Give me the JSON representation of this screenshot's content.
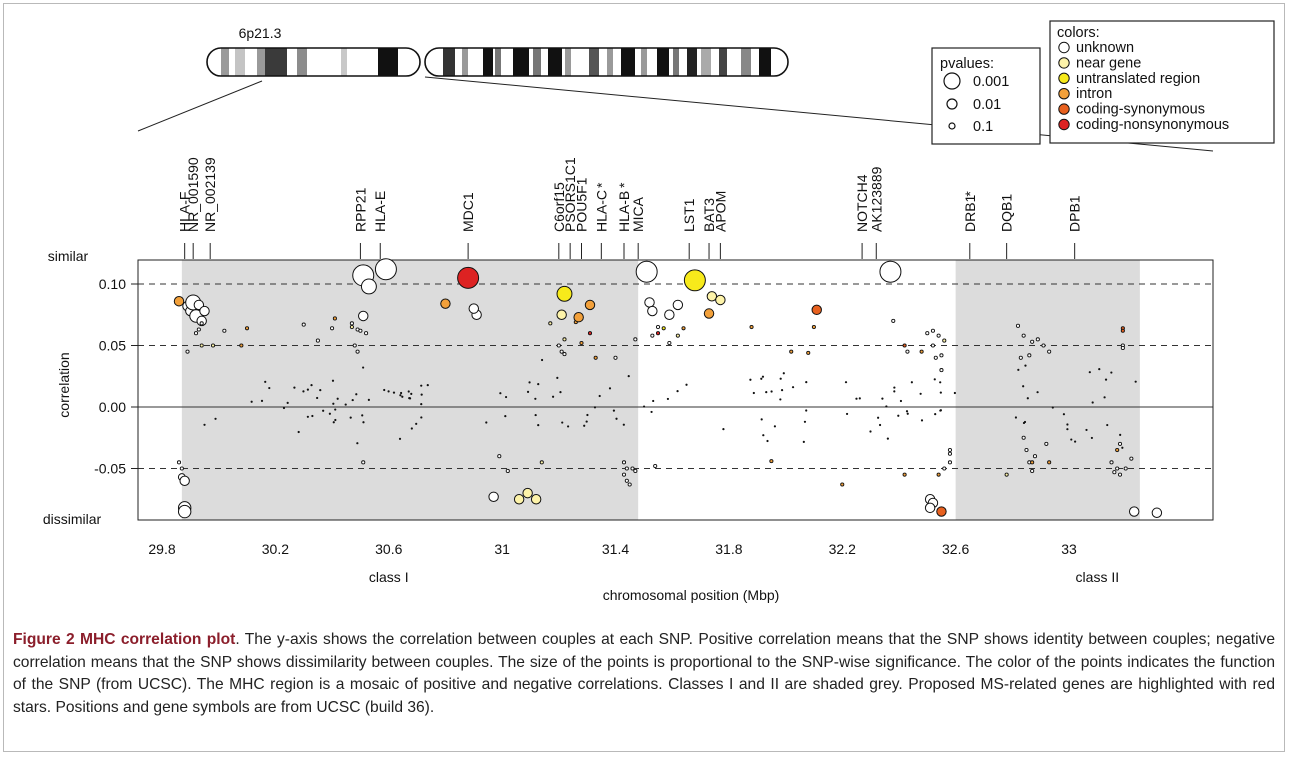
{
  "chart_data": {
    "type": "scatter",
    "title": "",
    "xlabel": "chromosomal position (Mbp)",
    "ylabel": "correlation",
    "xlim": [
      29.65,
      33.5
    ],
    "ylim": [
      -0.092,
      0.12
    ],
    "x_ticks": [
      29.8,
      30.2,
      30.6,
      31,
      31.4,
      31.8,
      32.2,
      32.6,
      33
    ],
    "x_tick_labels": [
      "29.8",
      "30.2",
      "30.6",
      "31",
      "31.4",
      "31.8",
      "32.2",
      "32.6",
      "33"
    ],
    "y_ticks": [
      0.1,
      0.05,
      0.0,
      -0.05
    ],
    "y_tick_labels": [
      "0.10",
      "0.05",
      "0.00",
      "-0.05"
    ],
    "y_top_label": "similar",
    "y_bottom_label": "dissimilar",
    "dashed_lines_y": [
      0.1,
      0.05,
      -0.05
    ],
    "solid_line_y": 0.0,
    "grid": false,
    "shaded_regions": [
      {
        "label": "class I",
        "x": [
          29.87,
          31.48
        ],
        "label_x": 30.6
      },
      {
        "label": "class II",
        "x": [
          32.6,
          33.25
        ],
        "label_x": 33.1
      }
    ],
    "chromosome": {
      "band_label": "6p21.3",
      "zoom_from": 30.6,
      "zoom_to": 33.5
    },
    "genes": [
      {
        "name": "HLA-F",
        "x": 29.88,
        "star": false
      },
      {
        "name": "NR_001590",
        "x": 29.91,
        "star": false
      },
      {
        "name": "NR_002139",
        "x": 29.97,
        "star": false
      },
      {
        "name": "RPP21",
        "x": 30.5,
        "star": false
      },
      {
        "name": "HLA-E",
        "x": 30.57,
        "star": false
      },
      {
        "name": "MDC1",
        "x": 30.88,
        "star": false
      },
      {
        "name": "C6orf15",
        "x": 31.2,
        "star": false
      },
      {
        "name": "PSORS1C1",
        "x": 31.24,
        "star": false
      },
      {
        "name": "POU5F1",
        "x": 31.28,
        "star": false
      },
      {
        "name": "HLA-C",
        "x": 31.35,
        "star": true
      },
      {
        "name": "HLA-B",
        "x": 31.43,
        "star": true
      },
      {
        "name": "MICA",
        "x": 31.48,
        "star": false
      },
      {
        "name": "LST1",
        "x": 31.66,
        "star": false
      },
      {
        "name": "BAT3",
        "x": 31.73,
        "star": false
      },
      {
        "name": "APOM",
        "x": 31.77,
        "star": false
      },
      {
        "name": "NOTCH4",
        "x": 32.27,
        "star": false
      },
      {
        "name": "AK123889",
        "x": 32.32,
        "star": false
      },
      {
        "name": "DRB1",
        "x": 32.65,
        "star": true
      },
      {
        "name": "DQB1",
        "x": 32.78,
        "star": false
      },
      {
        "name": "DPB1",
        "x": 33.02,
        "star": false
      }
    ],
    "pvalue_legend": {
      "title": "pvalues:",
      "entries": [
        {
          "label": "0.001",
          "size": "large"
        },
        {
          "label": "0.01",
          "size": "medium"
        },
        {
          "label": "0.1",
          "size": "small"
        }
      ]
    },
    "color_legend": {
      "title": "colors:",
      "entries": [
        {
          "label": "unknown",
          "color": "#ffffff"
        },
        {
          "label": "near gene",
          "color": "#fdf3a9"
        },
        {
          "label": "untranslated region",
          "color": "#f7ea1b"
        },
        {
          "label": "intron",
          "color": "#f2a03a"
        },
        {
          "label": "coding-synonymous",
          "color": "#e8611f"
        },
        {
          "label": "coding-nonsynonymous",
          "color": "#dd2222"
        }
      ]
    },
    "series": [
      {
        "category": "unknown",
        "color": "#ffffff",
        "points": [
          [
            29.86,
            -0.045,
            0.05
          ],
          [
            29.87,
            -0.05,
            0.05
          ],
          [
            29.87,
            -0.057,
            0.02
          ],
          [
            29.88,
            -0.06,
            0.01
          ],
          [
            29.88,
            -0.082,
            0.005
          ],
          [
            29.88,
            -0.085,
            0.005
          ],
          [
            29.89,
            0.082,
            0.01
          ],
          [
            29.9,
            0.078,
            0.01
          ],
          [
            29.91,
            0.084,
            0.005
          ],
          [
            29.91,
            0.085,
            0.003
          ],
          [
            29.92,
            0.074,
            0.005
          ],
          [
            29.93,
            0.083,
            0.01
          ],
          [
            29.94,
            0.07,
            0.01
          ],
          [
            29.93,
            0.063,
            0.05
          ],
          [
            29.94,
            0.068,
            0.05
          ],
          [
            29.92,
            0.06,
            0.05
          ],
          [
            29.89,
            0.045,
            0.05
          ],
          [
            29.95,
            0.078,
            0.01
          ],
          [
            30.02,
            0.062,
            0.05
          ],
          [
            30.3,
            0.067,
            0.05
          ],
          [
            30.35,
            0.054,
            0.05
          ],
          [
            30.4,
            0.064,
            0.05
          ],
          [
            30.47,
            0.068,
            0.05
          ],
          [
            30.49,
            0.063,
            0.05
          ],
          [
            30.5,
            0.062,
            0.05
          ],
          [
            30.51,
            0.074,
            0.01
          ],
          [
            30.51,
            0.107,
            0.001
          ],
          [
            30.53,
            0.098,
            0.003
          ],
          [
            30.59,
            0.112,
            0.001
          ],
          [
            30.48,
            0.05,
            0.05
          ],
          [
            30.49,
            0.045,
            0.05
          ],
          [
            30.52,
            0.06,
            0.05
          ],
          [
            30.51,
            -0.045,
            0.05
          ],
          [
            30.91,
            0.075,
            0.01
          ],
          [
            30.9,
            0.08,
            0.01
          ],
          [
            30.97,
            -0.073,
            0.01
          ],
          [
            31.02,
            -0.052,
            0.05
          ],
          [
            30.99,
            -0.04,
            0.05
          ],
          [
            31.2,
            0.05,
            0.05
          ],
          [
            31.21,
            0.045,
            0.05
          ],
          [
            31.22,
            0.043,
            0.05
          ],
          [
            31.4,
            0.04,
            0.05
          ],
          [
            31.43,
            -0.045,
            0.05
          ],
          [
            31.44,
            -0.05,
            0.05
          ],
          [
            31.43,
            -0.055,
            0.05
          ],
          [
            31.44,
            -0.06,
            0.05
          ],
          [
            31.45,
            -0.063,
            0.05
          ],
          [
            31.46,
            -0.05,
            0.05
          ],
          [
            31.47,
            -0.052,
            0.05
          ],
          [
            31.47,
            0.055,
            0.05
          ],
          [
            31.51,
            0.11,
            0.001
          ],
          [
            31.52,
            0.085,
            0.01
          ],
          [
            31.53,
            0.078,
            0.01
          ],
          [
            31.55,
            0.065,
            0.05
          ],
          [
            31.59,
            0.075,
            0.01
          ],
          [
            31.62,
            0.083,
            0.01
          ],
          [
            31.59,
            0.052,
            0.05
          ],
          [
            31.53,
            0.058,
            0.05
          ],
          [
            31.54,
            -0.048,
            0.05
          ],
          [
            32.37,
            0.11,
            0.001
          ],
          [
            32.38,
            0.07,
            0.05
          ],
          [
            32.43,
            0.045,
            0.05
          ],
          [
            32.5,
            0.06,
            0.05
          ],
          [
            32.52,
            0.062,
            0.05
          ],
          [
            32.52,
            0.05,
            0.05
          ],
          [
            32.54,
            0.058,
            0.05
          ],
          [
            32.53,
            0.04,
            0.05
          ],
          [
            32.55,
            0.042,
            0.05
          ],
          [
            32.55,
            0.03,
            0.05
          ],
          [
            32.51,
            -0.075,
            0.01
          ],
          [
            32.52,
            -0.078,
            0.01
          ],
          [
            32.51,
            -0.082,
            0.01
          ],
          [
            32.58,
            -0.035,
            0.05
          ],
          [
            32.58,
            -0.038,
            0.05
          ],
          [
            32.58,
            -0.045,
            0.05
          ],
          [
            32.56,
            -0.05,
            0.05
          ],
          [
            32.82,
            0.066,
            0.05
          ],
          [
            32.84,
            0.058,
            0.05
          ],
          [
            32.87,
            0.053,
            0.05
          ],
          [
            32.89,
            0.055,
            0.05
          ],
          [
            32.91,
            0.05,
            0.05
          ],
          [
            32.93,
            0.045,
            0.05
          ],
          [
            32.83,
            0.04,
            0.05
          ],
          [
            32.86,
            0.042,
            0.05
          ],
          [
            32.84,
            -0.025,
            0.05
          ],
          [
            32.85,
            -0.035,
            0.05
          ],
          [
            32.86,
            -0.045,
            0.05
          ],
          [
            32.88,
            -0.04,
            0.05
          ],
          [
            32.92,
            -0.03,
            0.05
          ],
          [
            32.87,
            -0.052,
            0.05
          ],
          [
            33.15,
            -0.045,
            0.05
          ],
          [
            33.17,
            -0.05,
            0.05
          ],
          [
            33.16,
            -0.053,
            0.05
          ],
          [
            33.18,
            -0.055,
            0.05
          ],
          [
            33.2,
            -0.05,
            0.05
          ],
          [
            33.19,
            0.05,
            0.05
          ],
          [
            33.22,
            -0.042,
            0.05
          ],
          [
            33.23,
            -0.085,
            0.01
          ],
          [
            33.31,
            -0.086,
            0.01
          ],
          [
            33.19,
            0.048,
            0.05
          ],
          [
            33.18,
            -0.03,
            0.05
          ]
        ]
      },
      {
        "category": "near gene",
        "color": "#fdf3a9",
        "points": [
          [
            31.06,
            -0.075,
            0.01
          ],
          [
            31.09,
            -0.07,
            0.01
          ],
          [
            31.12,
            -0.075,
            0.01
          ],
          [
            31.21,
            0.075,
            0.01
          ],
          [
            31.17,
            0.068,
            0.05
          ],
          [
            31.22,
            0.055,
            0.05
          ],
          [
            31.74,
            0.09,
            0.01
          ],
          [
            31.77,
            0.087,
            0.01
          ],
          [
            31.62,
            0.058,
            0.05
          ],
          [
            32.56,
            0.054,
            0.05
          ],
          [
            32.78,
            -0.055,
            0.05
          ],
          [
            31.14,
            -0.045,
            0.05
          ],
          [
            29.94,
            0.05,
            0.05
          ],
          [
            29.98,
            0.05,
            0.05
          ],
          [
            30.47,
            0.065,
            0.05
          ]
        ]
      },
      {
        "category": "untranslated region",
        "color": "#f7ea1b",
        "points": [
          [
            31.22,
            0.092,
            0.003
          ],
          [
            31.68,
            0.103,
            0.001
          ],
          [
            31.57,
            0.064,
            0.05
          ]
        ]
      },
      {
        "category": "intron",
        "color": "#f2a03a",
        "points": [
          [
            29.86,
            0.086,
            0.01
          ],
          [
            30.1,
            0.064,
            0.05
          ],
          [
            30.08,
            0.05,
            0.05
          ],
          [
            30.41,
            0.072,
            0.05
          ],
          [
            30.8,
            0.084,
            0.01
          ],
          [
            31.26,
            0.069,
            0.05
          ],
          [
            31.27,
            0.073,
            0.01
          ],
          [
            31.31,
            0.083,
            0.01
          ],
          [
            31.33,
            0.04,
            0.05
          ],
          [
            31.28,
            0.052,
            0.05
          ],
          [
            31.64,
            0.064,
            0.05
          ],
          [
            31.73,
            0.076,
            0.01
          ],
          [
            31.88,
            0.065,
            0.05
          ],
          [
            32.1,
            0.065,
            0.05
          ],
          [
            32.08,
            0.044,
            0.05
          ],
          [
            32.02,
            0.045,
            0.05
          ],
          [
            32.48,
            0.045,
            0.05
          ],
          [
            32.54,
            -0.055,
            0.05
          ],
          [
            32.42,
            -0.055,
            0.05
          ],
          [
            31.95,
            -0.044,
            0.05
          ],
          [
            32.2,
            -0.063,
            0.05
          ],
          [
            33.17,
            -0.035,
            0.05
          ],
          [
            32.93,
            -0.045,
            0.05
          ],
          [
            32.87,
            -0.045,
            0.05
          ]
        ]
      },
      {
        "category": "coding-synonymous",
        "color": "#e8611f",
        "points": [
          [
            32.11,
            0.079,
            0.01
          ],
          [
            32.55,
            -0.085,
            0.01
          ],
          [
            33.19,
            0.064,
            0.05
          ],
          [
            33.19,
            0.062,
            0.05
          ],
          [
            32.42,
            0.05,
            0.05
          ]
        ]
      },
      {
        "category": "coding-nonsynonymous",
        "color": "#dd2222",
        "points": [
          [
            30.88,
            0.105,
            0.001
          ],
          [
            31.31,
            0.06,
            0.05
          ],
          [
            31.55,
            0.06,
            0.05
          ]
        ]
      }
    ]
  },
  "caption": {
    "heading": "Figure 2 MHC correlation plot",
    "body": ". The y-axis shows the correlation between couples at each SNP. Positive correlation means that the SNP shows identity between couples; negative correlation means that the SNP shows dissimilarity between couples. The size of the points is proportional to the SNP-wise significance. The color of the points indicates the function of the SNP (from UCSC). The MHC region is a mosaic of positive and negative correlations. Classes I and II are shaded grey. Proposed MS-related genes are highlighted with red stars. Positions and gene symbols are from UCSC (build 36)."
  }
}
